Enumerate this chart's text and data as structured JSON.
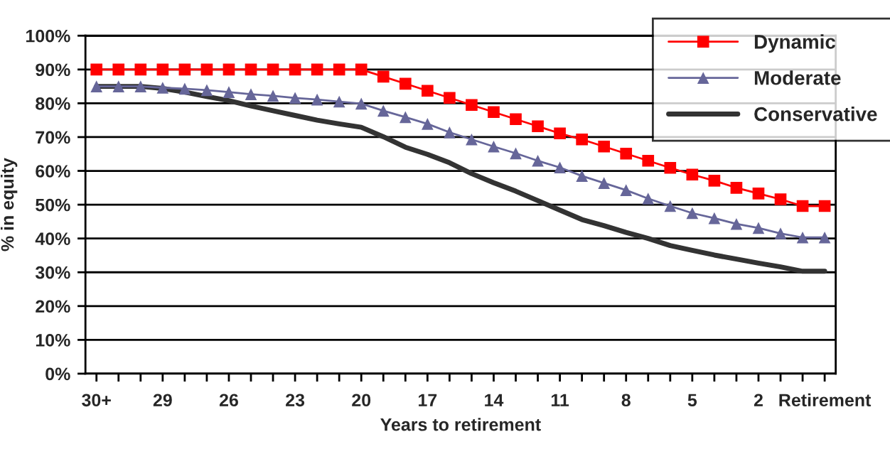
{
  "chart_data": {
    "type": "line",
    "xlabel": "Years to retirement",
    "ylabel": "% in equity",
    "categories": [
      "30+",
      null,
      null,
      "29",
      null,
      null,
      "26",
      null,
      null,
      "23",
      null,
      null,
      "20",
      null,
      null,
      "17",
      null,
      null,
      "14",
      null,
      null,
      "11",
      null,
      null,
      "8",
      null,
      null,
      "5",
      null,
      null,
      "2",
      null,
      null,
      "Retirement"
    ],
    "series": [
      {
        "name": "Dynamic",
        "color": "#ff0000",
        "marker": "square",
        "values": [
          90,
          90,
          90,
          90,
          90,
          90,
          90,
          90,
          90,
          90,
          90,
          90,
          90,
          87.9,
          85.8,
          83.7,
          81.6,
          79.5,
          77.4,
          75.3,
          73.2,
          71.1,
          69.3,
          67.2,
          65.1,
          63,
          60.9,
          58.9,
          57.1,
          55,
          53.3,
          51.6,
          49.6,
          49.6
        ]
      },
      {
        "name": "Moderate",
        "color": "#666699",
        "marker": "triangle",
        "values": [
          85,
          85,
          85,
          84.6,
          84.3,
          83.9,
          83.3,
          82.7,
          82.2,
          81.6,
          81.1,
          80.5,
          79.9,
          77.8,
          75.9,
          73.9,
          71.4,
          69.3,
          67.2,
          65.2,
          63,
          61,
          58.5,
          56.4,
          54.3,
          51.8,
          49.6,
          47.5,
          46,
          44.3,
          43.1,
          41.5,
          40.3,
          40.3
        ]
      },
      {
        "name": "Conservative",
        "color": "#333333",
        "marker": "none",
        "values": [
          85,
          85,
          85,
          84.4,
          83.3,
          82,
          80.8,
          79.2,
          77.8,
          76.4,
          75,
          73.9,
          72.9,
          70.1,
          67,
          64.9,
          62.4,
          59.2,
          56.5,
          54,
          51.2,
          48.4,
          45.6,
          43.8,
          41.8,
          40,
          37.9,
          36.5,
          35.1,
          33.9,
          32.7,
          31.6,
          30.3,
          30.3
        ]
      }
    ],
    "ylim": [
      0,
      100
    ],
    "yticks": [
      {
        "value": 0,
        "label": "0%"
      },
      {
        "value": 10,
        "label": "10%"
      },
      {
        "value": 20,
        "label": "20%"
      },
      {
        "value": 30,
        "label": "30%"
      },
      {
        "value": 40,
        "label": "40%"
      },
      {
        "value": 50,
        "label": "50%"
      },
      {
        "value": 60,
        "label": "60%"
      },
      {
        "value": 70,
        "label": "70%"
      },
      {
        "value": 80,
        "label": "80%"
      },
      {
        "value": 90,
        "label": "90%"
      },
      {
        "value": 100,
        "label": "100%"
      }
    ],
    "grid": "y",
    "legend": "top right",
    "line_style": "solid"
  }
}
